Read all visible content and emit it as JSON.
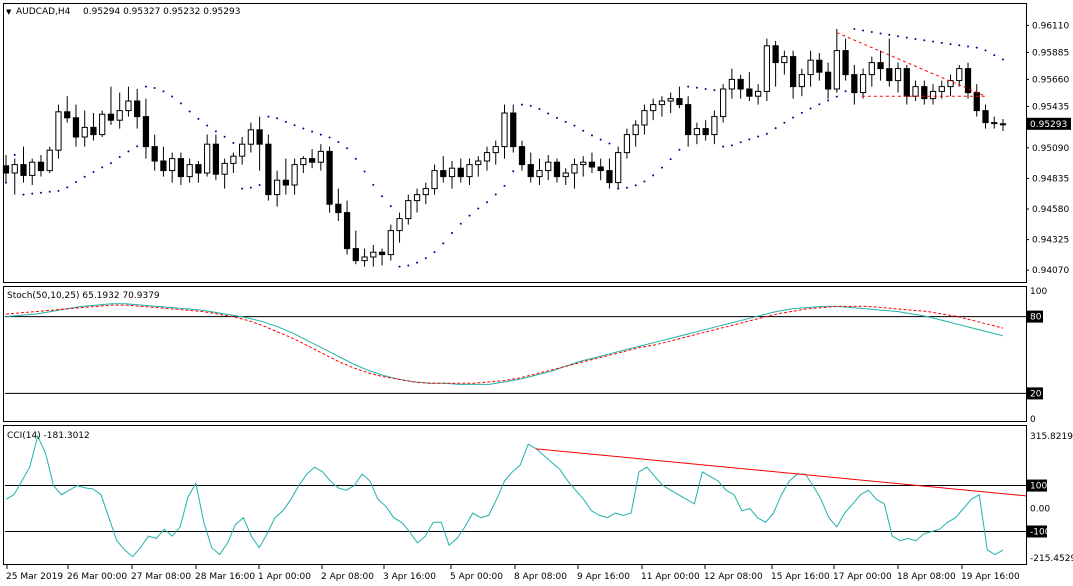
{
  "main": {
    "symbol_label": "AUDCAD,H4",
    "ohlc_label": "0.95294 0.95327 0.95232 0.95293",
    "price_levels": [
      "0.96110",
      "0.95885",
      "0.95660",
      "0.95435",
      "0.95090",
      "0.94835",
      "0.94580",
      "0.94325",
      "0.94070"
    ],
    "current_price_label": "0.95293"
  },
  "stoch": {
    "label": "Stoch(50,10,25) 65.1932 70.9379",
    "levels": [
      "100",
      "80",
      "20",
      "0"
    ]
  },
  "cci": {
    "label": "CCI(14) -181.3012",
    "levels": [
      "315.8219",
      "100",
      "0.00",
      "-100",
      "-215.4529"
    ]
  },
  "time_axis": [
    "25 Mar 2019",
    "26 Mar 00:00",
    "27 Mar 08:00",
    "28 Mar 16:00",
    "1 Apr 00:00",
    "2 Apr 08:00",
    "3 Apr 16:00",
    "5 Apr 00:00",
    "8 Apr 08:00",
    "9 Apr 16:00",
    "11 Apr 00:00",
    "12 Apr 08:00",
    "15 Apr 16:00",
    "17 Apr 00:00",
    "18 Apr 08:00",
    "19 Apr 16:00"
  ],
  "colors": {
    "bull_candle": "#ffffff",
    "bear_candle": "#000000",
    "sar_dots": "#00008b",
    "stoch_main": "#20b2aa",
    "stoch_signal": "#ff0000",
    "cci_line": "#20b2aa",
    "trendline": "#ff0000"
  },
  "chart_data": [
    {
      "type": "candlestick",
      "title": "AUDCAD,H4",
      "ylim": [
        0.9398,
        0.9628
      ],
      "candles": [
        [
          0.9494,
          0.9503,
          0.948,
          0.9488
        ],
        [
          0.9488,
          0.95,
          0.947,
          0.9495
        ],
        [
          0.9495,
          0.951,
          0.948,
          0.9486
        ],
        [
          0.9486,
          0.95,
          0.9478,
          0.9497
        ],
        [
          0.9497,
          0.9503,
          0.9485,
          0.949
        ],
        [
          0.949,
          0.951,
          0.9488,
          0.9507
        ],
        [
          0.9507,
          0.9545,
          0.95,
          0.9539
        ],
        [
          0.9539,
          0.9552,
          0.953,
          0.9534
        ],
        [
          0.9534,
          0.9545,
          0.951,
          0.9518
        ],
        [
          0.9518,
          0.954,
          0.951,
          0.9526
        ],
        [
          0.9526,
          0.9538,
          0.9515,
          0.952
        ],
        [
          0.952,
          0.954,
          0.9518,
          0.9537
        ],
        [
          0.9537,
          0.956,
          0.9528,
          0.9532
        ],
        [
          0.9532,
          0.9555,
          0.9525,
          0.954
        ],
        [
          0.954,
          0.956,
          0.9535,
          0.9548
        ],
        [
          0.9548,
          0.9558,
          0.9525,
          0.9535
        ],
        [
          0.9535,
          0.955,
          0.95,
          0.951
        ],
        [
          0.951,
          0.952,
          0.949,
          0.9498
        ],
        [
          0.9498,
          0.951,
          0.9485,
          0.949
        ],
        [
          0.949,
          0.9505,
          0.948,
          0.95
        ],
        [
          0.95,
          0.9505,
          0.9478,
          0.9485
        ],
        [
          0.9485,
          0.95,
          0.948,
          0.9495
        ],
        [
          0.9495,
          0.9498,
          0.948,
          0.9488
        ],
        [
          0.9488,
          0.952,
          0.9485,
          0.9512
        ],
        [
          0.9512,
          0.952,
          0.9482,
          0.9487
        ],
        [
          0.9487,
          0.95,
          0.9475,
          0.9496
        ],
        [
          0.9496,
          0.9505,
          0.9488,
          0.9502
        ],
        [
          0.9502,
          0.9518,
          0.9495,
          0.9512
        ],
        [
          0.9512,
          0.953,
          0.9505,
          0.9524
        ],
        [
          0.9524,
          0.9535,
          0.949,
          0.9512
        ],
        [
          0.9512,
          0.952,
          0.9465,
          0.947
        ],
        [
          0.947,
          0.949,
          0.946,
          0.9482
        ],
        [
          0.9482,
          0.95,
          0.947,
          0.9478
        ],
        [
          0.9478,
          0.95,
          0.947,
          0.9495
        ],
        [
          0.9495,
          0.9502,
          0.9488,
          0.95
        ],
        [
          0.95,
          0.9508,
          0.9492,
          0.9497
        ],
        [
          0.9497,
          0.9512,
          0.949,
          0.9506
        ],
        [
          0.9506,
          0.951,
          0.9455,
          0.9462
        ],
        [
          0.9462,
          0.9475,
          0.9448,
          0.9455
        ],
        [
          0.9455,
          0.9465,
          0.942,
          0.9425
        ],
        [
          0.9425,
          0.944,
          0.9412,
          0.9415
        ],
        [
          0.9415,
          0.9425,
          0.941,
          0.9418
        ],
        [
          0.9418,
          0.9428,
          0.941,
          0.9422
        ],
        [
          0.9422,
          0.9425,
          0.9411,
          0.942
        ],
        [
          0.942,
          0.9445,
          0.9415,
          0.944
        ],
        [
          0.944,
          0.9455,
          0.943,
          0.945
        ],
        [
          0.945,
          0.947,
          0.9445,
          0.9465
        ],
        [
          0.9465,
          0.9475,
          0.9455,
          0.947
        ],
        [
          0.947,
          0.948,
          0.9462,
          0.9475
        ],
        [
          0.9475,
          0.9495,
          0.947,
          0.949
        ],
        [
          0.949,
          0.9502,
          0.948,
          0.9485
        ],
        [
          0.9485,
          0.9498,
          0.9475,
          0.9492
        ],
        [
          0.9492,
          0.95,
          0.948,
          0.9485
        ],
        [
          0.9485,
          0.95,
          0.9478,
          0.9495
        ],
        [
          0.9495,
          0.9502,
          0.9485,
          0.9498
        ],
        [
          0.9498,
          0.951,
          0.949,
          0.9505
        ],
        [
          0.9505,
          0.9515,
          0.9495,
          0.951
        ],
        [
          0.951,
          0.9545,
          0.95,
          0.9538
        ],
        [
          0.9538,
          0.9545,
          0.9505,
          0.951
        ],
        [
          0.951,
          0.9515,
          0.949,
          0.9495
        ],
        [
          0.9495,
          0.9505,
          0.948,
          0.9485
        ],
        [
          0.9485,
          0.95,
          0.9478,
          0.949
        ],
        [
          0.949,
          0.9503,
          0.9482,
          0.9497
        ],
        [
          0.9497,
          0.95,
          0.948,
          0.9485
        ],
        [
          0.9485,
          0.9492,
          0.9478,
          0.9488
        ],
        [
          0.9488,
          0.95,
          0.9475,
          0.9495
        ],
        [
          0.9495,
          0.9502,
          0.9485,
          0.9497
        ],
        [
          0.9497,
          0.9505,
          0.9488,
          0.9493
        ],
        [
          0.9493,
          0.95,
          0.9482,
          0.949
        ],
        [
          0.949,
          0.95,
          0.9475,
          0.948
        ],
        [
          0.948,
          0.951,
          0.9475,
          0.9505
        ],
        [
          0.9505,
          0.9525,
          0.95,
          0.952
        ],
        [
          0.952,
          0.9532,
          0.951,
          0.9528
        ],
        [
          0.9528,
          0.9545,
          0.952,
          0.954
        ],
        [
          0.954,
          0.955,
          0.9532,
          0.9545
        ],
        [
          0.9545,
          0.9552,
          0.9535,
          0.9548
        ],
        [
          0.9548,
          0.9555,
          0.9538,
          0.955
        ],
        [
          0.955,
          0.956,
          0.9542,
          0.9545
        ],
        [
          0.9545,
          0.9552,
          0.951,
          0.952
        ],
        [
          0.952,
          0.953,
          0.9512,
          0.9525
        ],
        [
          0.9525,
          0.9532,
          0.9515,
          0.952
        ],
        [
          0.952,
          0.954,
          0.9512,
          0.9535
        ],
        [
          0.9535,
          0.9562,
          0.953,
          0.9558
        ],
        [
          0.9558,
          0.9575,
          0.955,
          0.9566
        ],
        [
          0.9566,
          0.957,
          0.955,
          0.9558
        ],
        [
          0.9558,
          0.9572,
          0.9548,
          0.9552
        ],
        [
          0.9552,
          0.9562,
          0.9545,
          0.9556
        ],
        [
          0.9556,
          0.96,
          0.9548,
          0.9594
        ],
        [
          0.9594,
          0.9598,
          0.956,
          0.958
        ],
        [
          0.958,
          0.959,
          0.957,
          0.9585
        ],
        [
          0.9585,
          0.959,
          0.955,
          0.956
        ],
        [
          0.956,
          0.9575,
          0.9552,
          0.957
        ],
        [
          0.957,
          0.959,
          0.956,
          0.9582
        ],
        [
          0.9582,
          0.9588,
          0.9565,
          0.9572
        ],
        [
          0.9572,
          0.958,
          0.955,
          0.9558
        ],
        [
          0.9558,
          0.9608,
          0.9555,
          0.959
        ],
        [
          0.959,
          0.96,
          0.9565,
          0.957
        ],
        [
          0.957,
          0.9578,
          0.9545,
          0.9555
        ],
        [
          0.9555,
          0.9575,
          0.955,
          0.957
        ],
        [
          0.957,
          0.9585,
          0.956,
          0.958
        ],
        [
          0.958,
          0.959,
          0.9565,
          0.9575
        ],
        [
          0.9575,
          0.96,
          0.956,
          0.9565
        ],
        [
          0.9565,
          0.958,
          0.9555,
          0.9575
        ],
        [
          0.9575,
          0.9578,
          0.9545,
          0.9552
        ],
        [
          0.9552,
          0.9565,
          0.9548,
          0.956
        ],
        [
          0.956,
          0.9565,
          0.9545,
          0.955
        ],
        [
          0.955,
          0.9562,
          0.9545,
          0.9556
        ],
        [
          0.9556,
          0.9565,
          0.955,
          0.956
        ],
        [
          0.956,
          0.957,
          0.9552,
          0.9565
        ],
        [
          0.9565,
          0.9578,
          0.956,
          0.9575
        ],
        [
          0.9575,
          0.958,
          0.955,
          0.9555
        ],
        [
          0.9555,
          0.9562,
          0.9535,
          0.954
        ],
        [
          0.954,
          0.9545,
          0.9525,
          0.953
        ],
        [
          0.953,
          0.9535,
          0.9525,
          0.953
        ],
        [
          0.9529,
          0.9533,
          0.9523,
          0.9529
        ]
      ],
      "horizontal_lines": [
        0.9552
      ],
      "sar_note": "Parabolic SAR dots"
    },
    {
      "type": "line",
      "title": "Stoch(50,10,25) 65.1932 70.9379",
      "ylim": [
        0,
        100
      ],
      "levels": [
        80,
        20
      ],
      "series": [
        {
          "values": [
            80,
            81,
            82,
            84,
            86,
            88,
            89,
            90,
            90,
            89,
            88,
            87,
            86,
            85,
            83,
            81,
            79,
            76,
            72,
            67,
            61,
            55,
            49,
            43,
            38,
            34,
            31,
            29,
            28,
            28,
            27,
            27,
            27,
            29,
            31,
            34,
            37,
            41,
            45,
            48,
            51,
            54,
            57,
            60,
            63,
            66,
            69,
            72,
            75,
            78,
            81,
            84,
            86,
            87,
            88,
            88,
            87,
            86,
            85,
            84,
            82,
            80,
            77,
            74,
            71,
            68,
            65
          ]
        },
        {
          "values": [
            82,
            83,
            84,
            85,
            86,
            87,
            88,
            89,
            89,
            88,
            87,
            86,
            85,
            84,
            82,
            80,
            77,
            73,
            68,
            63,
            57,
            51,
            45,
            40,
            36,
            33,
            31,
            29,
            28,
            28,
            28,
            28,
            29,
            30,
            32,
            35,
            38,
            41,
            44,
            47,
            50,
            53,
            56,
            58,
            61,
            64,
            67,
            70,
            73,
            76,
            79,
            82,
            84,
            86,
            87,
            88,
            88,
            88,
            87,
            86,
            85,
            84,
            82,
            80,
            77,
            74,
            71
          ]
        }
      ]
    },
    {
      "type": "line",
      "title": "CCI(14) -181.3012",
      "ylim": [
        -215.4529,
        315.8219
      ],
      "levels": [
        100,
        -100
      ],
      "series": [
        {
          "values": [
            40,
            60,
            120,
            180,
            315,
            240,
            100,
            60,
            80,
            100,
            90,
            85,
            60,
            -40,
            -140,
            -180,
            -210,
            -170,
            -120,
            -130,
            -90,
            -120,
            -80,
            50,
            110,
            -60,
            -170,
            -200,
            -150,
            -70,
            -40,
            -120,
            -170,
            -110,
            -40,
            -10,
            40,
            100,
            150,
            180,
            160,
            120,
            90,
            80,
            100,
            150,
            120,
            40,
            10,
            -40,
            -60,
            -100,
            -150,
            -120,
            -60,
            -60,
            -160,
            -130,
            -80,
            -20,
            -40,
            -30,
            40,
            120,
            160,
            190,
            280,
            260,
            230,
            200,
            170,
            120,
            80,
            40,
            -10,
            -30,
            -40,
            -20,
            -30,
            -20,
            160,
            180,
            140,
            100,
            80,
            60,
            40,
            20,
            160,
            140,
            120,
            80,
            60,
            -10,
            0,
            -40,
            -60,
            -20,
            60,
            120,
            150,
            150,
            100,
            40,
            -40,
            -80,
            -20,
            20,
            60,
            80,
            40,
            20,
            -120,
            -140,
            -130,
            -140,
            -110,
            -100,
            -90,
            -60,
            -40,
            0,
            40,
            60,
            -180,
            -200,
            -181
          ]
        }
      ]
    }
  ]
}
